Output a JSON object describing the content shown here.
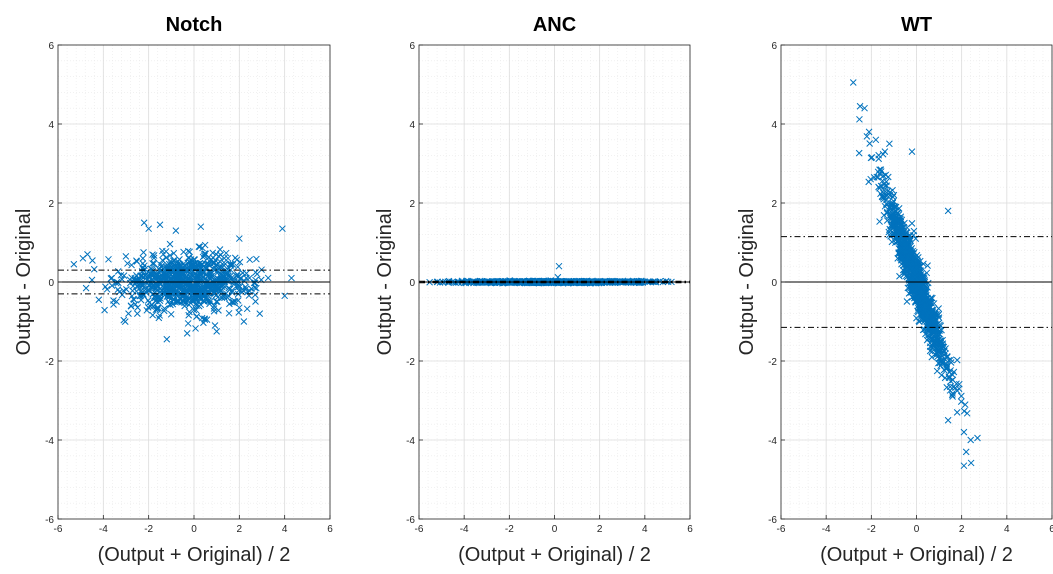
{
  "figure": {
    "background": "#ffffff",
    "marker_color": "#0072BD"
  },
  "chart_data": [
    {
      "type": "scatter",
      "title": "Notch",
      "xlabel": "(Output + Original) / 2",
      "ylabel": "Output - Original",
      "xlim": [
        -6,
        6
      ],
      "ylim": [
        -6,
        6
      ],
      "xticks": [
        -6,
        -4,
        -2,
        0,
        2,
        4,
        6
      ],
      "yticks": [
        -6,
        -4,
        -2,
        0,
        2,
        4,
        6
      ],
      "grid": true,
      "minor_grid": true,
      "marker": "x",
      "color": "#0072BD",
      "mean_line": 0,
      "limit_lines": [
        0.3,
        -0.3
      ],
      "point_count": 850,
      "cluster": {
        "x_mean": -0.3,
        "x_sd": 1.4,
        "y_mean": 0,
        "y_sd": 0.35,
        "slope": 0
      },
      "outliers": [
        [
          -5.3,
          0.45
        ],
        [
          -4.9,
          0.6
        ],
        [
          -4.7,
          0.7
        ],
        [
          -4.5,
          0.05
        ],
        [
          -4.2,
          -0.45
        ],
        [
          -2.2,
          1.5
        ],
        [
          -2.0,
          1.35
        ],
        [
          -1.5,
          1.45
        ],
        [
          -0.8,
          1.3
        ],
        [
          0.3,
          1.4
        ],
        [
          2.0,
          1.1
        ],
        [
          3.9,
          1.35
        ],
        [
          4.3,
          0.1
        ],
        [
          4.0,
          -0.35
        ],
        [
          -1.2,
          -1.45
        ],
        [
          -0.3,
          -1.3
        ],
        [
          1.0,
          -1.25
        ],
        [
          2.2,
          -1.0
        ],
        [
          -2.5,
          -0.8
        ],
        [
          2.9,
          -0.8
        ]
      ]
    },
    {
      "type": "scatter",
      "title": "ANC",
      "xlabel": "(Output + Original) / 2",
      "ylabel": "Output - Original",
      "xlim": [
        -6,
        6
      ],
      "ylim": [
        -6,
        6
      ],
      "xticks": [
        -6,
        -4,
        -2,
        0,
        2,
        4,
        6
      ],
      "yticks": [
        -6,
        -4,
        -2,
        0,
        2,
        4,
        6
      ],
      "grid": true,
      "minor_grid": true,
      "marker": "x",
      "color": "#0072BD",
      "mean_line": 0,
      "limit_lines": [
        0.02,
        -0.02
      ],
      "point_count": 900,
      "cluster": {
        "x_mean": 0,
        "x_sd": 1.9,
        "y_mean": 0,
        "y_sd": 0.012,
        "slope": 0
      },
      "outliers": [
        [
          0.2,
          0.4
        ],
        [
          0.15,
          0.12
        ],
        [
          -5.2,
          0.0
        ],
        [
          4.8,
          0.0
        ]
      ]
    },
    {
      "type": "scatter",
      "title": "WT",
      "xlabel": "(Output + Original) / 2",
      "ylabel": "Output - Original",
      "xlim": [
        -6,
        6
      ],
      "ylim": [
        -6,
        6
      ],
      "xticks": [
        -6,
        -4,
        -2,
        0,
        2,
        4,
        6
      ],
      "yticks": [
        -6,
        -4,
        -2,
        0,
        2,
        4,
        6
      ],
      "grid": true,
      "minor_grid": true,
      "marker": "x",
      "color": "#0072BD",
      "mean_line": 0,
      "limit_lines": [
        1.15,
        -1.15
      ],
      "point_count": 1000,
      "cluster": {
        "x_mean": 0,
        "x_sd": 0.75,
        "y_mean": 0,
        "y_sd": 0.35,
        "slope": -1.55
      },
      "outliers": [
        [
          -2.8,
          5.05
        ],
        [
          -2.5,
          4.45
        ],
        [
          -2.3,
          4.4
        ],
        [
          -2.1,
          3.8
        ],
        [
          -1.8,
          3.6
        ],
        [
          -1.4,
          3.3
        ],
        [
          -1.2,
          3.5
        ],
        [
          -0.2,
          3.3
        ],
        [
          1.6,
          -2.9
        ],
        [
          1.8,
          -3.3
        ],
        [
          2.1,
          -3.8
        ],
        [
          2.4,
          -4.0
        ],
        [
          2.2,
          -4.3
        ],
        [
          2.1,
          -4.65
        ],
        [
          1.4,
          -3.5
        ],
        [
          2.7,
          -3.95
        ],
        [
          1.4,
          1.8
        ],
        [
          -1.0,
          2.2
        ]
      ]
    }
  ]
}
